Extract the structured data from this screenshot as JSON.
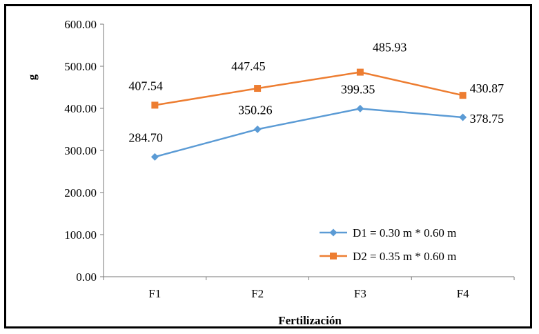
{
  "chart_data": {
    "type": "line",
    "categories": [
      "F1",
      "F2",
      "F3",
      "F4"
    ],
    "series": [
      {
        "name": "D1 = 0.30 m * 0.60 m",
        "values": [
          284.7,
          350.26,
          399.35,
          378.75
        ],
        "labels": [
          "284.70",
          "350.26",
          "399.35",
          "378.75"
        ],
        "color": "#5B9BD5",
        "marker": "diamond"
      },
      {
        "name": "D2 = 0.35 m * 0.60 m",
        "values": [
          407.54,
          447.45,
          485.93,
          430.87
        ],
        "labels": [
          "407.54",
          "447.45",
          "485.93",
          "430.87"
        ],
        "color": "#ED7D31",
        "marker": "square"
      }
    ],
    "xlabel": "Fertilización",
    "ylabel": "g",
    "ylim": [
      0,
      600
    ],
    "yticks": [
      "0.00",
      "100.00",
      "200.00",
      "300.00",
      "400.00",
      "500.00",
      "600.00"
    ],
    "grid": false,
    "legend_position": "bottom-right"
  }
}
